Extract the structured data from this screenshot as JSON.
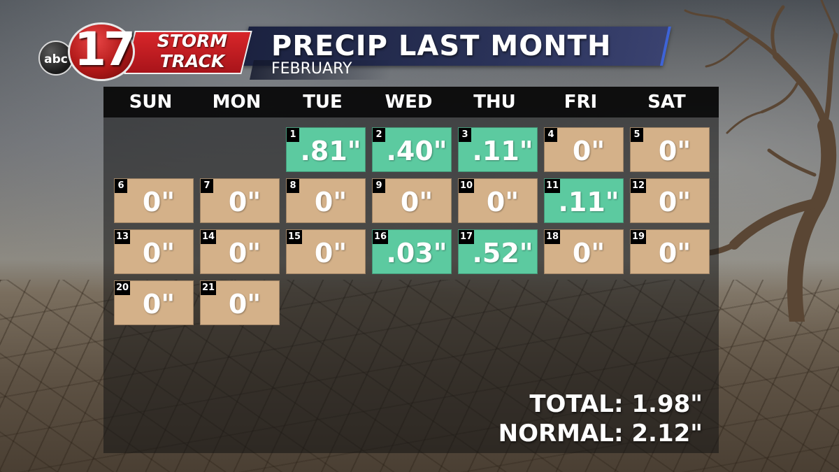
{
  "branding": {
    "network": "abc",
    "channel": "17",
    "brand_line1": "STORM",
    "brand_line2": "TRACK"
  },
  "header": {
    "title": "PRECIP LAST MONTH",
    "subtitle": "FEBRUARY"
  },
  "weekdays": [
    "SUN",
    "MON",
    "TUE",
    "WED",
    "THU",
    "FRI",
    "SAT"
  ],
  "days": [
    {
      "day": "1",
      "value": ".81\"",
      "wet": true
    },
    {
      "day": "2",
      "value": ".40\"",
      "wet": true
    },
    {
      "day": "3",
      "value": ".11\"",
      "wet": true
    },
    {
      "day": "4",
      "value": "0\"",
      "wet": false
    },
    {
      "day": "5",
      "value": "0\"",
      "wet": false
    },
    {
      "day": "6",
      "value": "0\"",
      "wet": false
    },
    {
      "day": "7",
      "value": "0\"",
      "wet": false
    },
    {
      "day": "8",
      "value": "0\"",
      "wet": false
    },
    {
      "day": "9",
      "value": "0\"",
      "wet": false
    },
    {
      "day": "10",
      "value": "0\"",
      "wet": false
    },
    {
      "day": "11",
      "value": ".11\"",
      "wet": true
    },
    {
      "day": "12",
      "value": "0\"",
      "wet": false
    },
    {
      "day": "13",
      "value": "0\"",
      "wet": false
    },
    {
      "day": "14",
      "value": "0\"",
      "wet": false
    },
    {
      "day": "15",
      "value": "0\"",
      "wet": false
    },
    {
      "day": "16",
      "value": ".03\"",
      "wet": true
    },
    {
      "day": "17",
      "value": ".52\"",
      "wet": true
    },
    {
      "day": "18",
      "value": "0\"",
      "wet": false
    },
    {
      "day": "19",
      "value": "0\"",
      "wet": false
    },
    {
      "day": "20",
      "value": "0\"",
      "wet": false
    },
    {
      "day": "21",
      "value": "0\"",
      "wet": false
    }
  ],
  "summary": {
    "total": "TOTAL: 1.98\"",
    "normal": "NORMAL: 2.12\""
  },
  "colors": {
    "dry": "#d4b189",
    "wet": "#5ccaa0",
    "header_accent": "#3d63d8",
    "logo_red": "#c41e24"
  }
}
